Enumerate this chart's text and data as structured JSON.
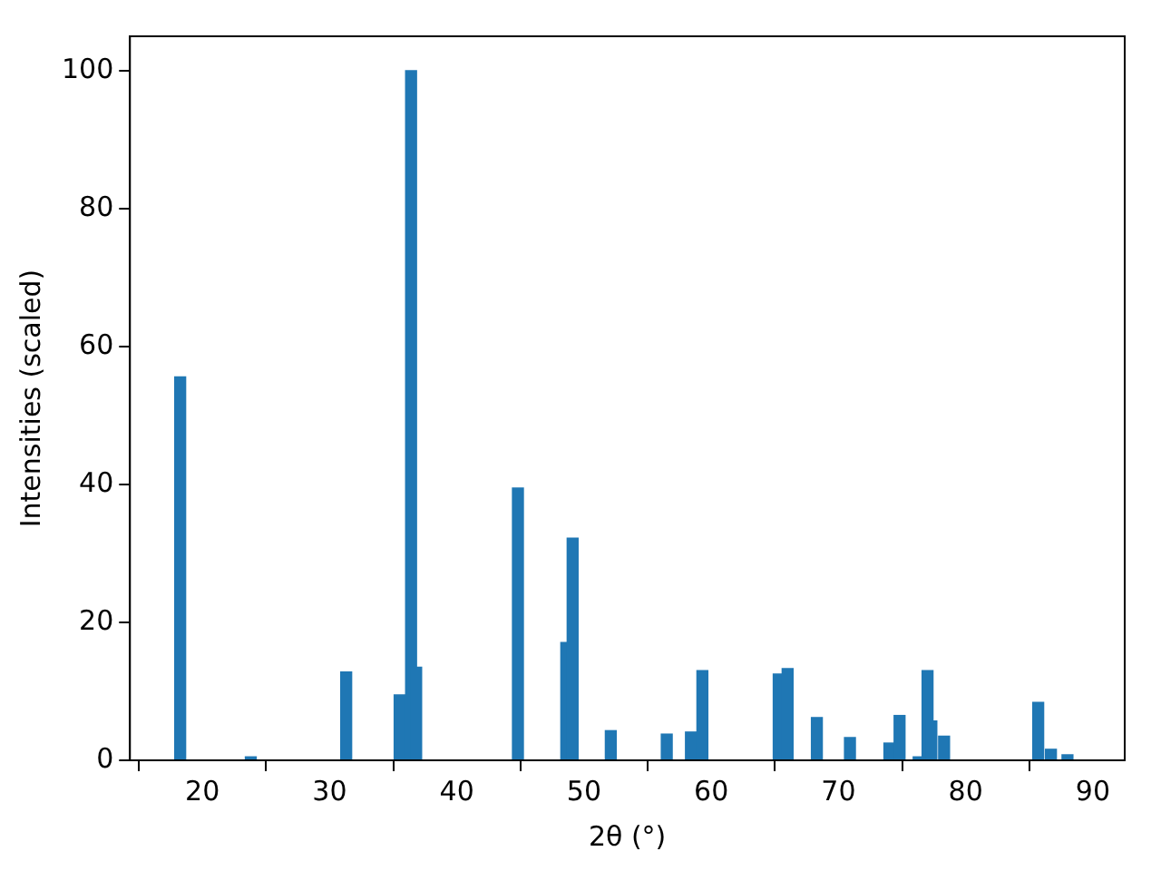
{
  "chart_data": {
    "type": "bar",
    "xlabel": "2θ (°)",
    "ylabel": "Intensities (scaled)",
    "x": [
      18.25,
      23.8,
      31.3,
      35.5,
      36.4,
      36.8,
      44.8,
      48.6,
      49.1,
      52.1,
      56.5,
      58.4,
      59.3,
      65.3,
      66.0,
      68.3,
      70.9,
      74.0,
      74.8,
      76.3,
      77.0,
      77.3,
      78.3,
      85.7,
      86.7,
      88.0
    ],
    "values": [
      55.6,
      0.5,
      12.8,
      9.5,
      100,
      13.5,
      39.5,
      17.1,
      32.2,
      4.3,
      3.8,
      4.1,
      13.0,
      12.5,
      13.3,
      6.2,
      3.3,
      2.5,
      6.5,
      0.5,
      13.0,
      5.7,
      3.5,
      8.4,
      1.6,
      0.8
    ],
    "color": "#1f77b4",
    "xlim": [
      14.3,
      92.5
    ],
    "ylim": [
      0,
      105
    ],
    "xticks": [
      20,
      30,
      40,
      50,
      60,
      70,
      80,
      90
    ],
    "yticks": [
      0,
      20,
      40,
      60,
      80,
      100
    ],
    "grid": false,
    "legend": false
  }
}
